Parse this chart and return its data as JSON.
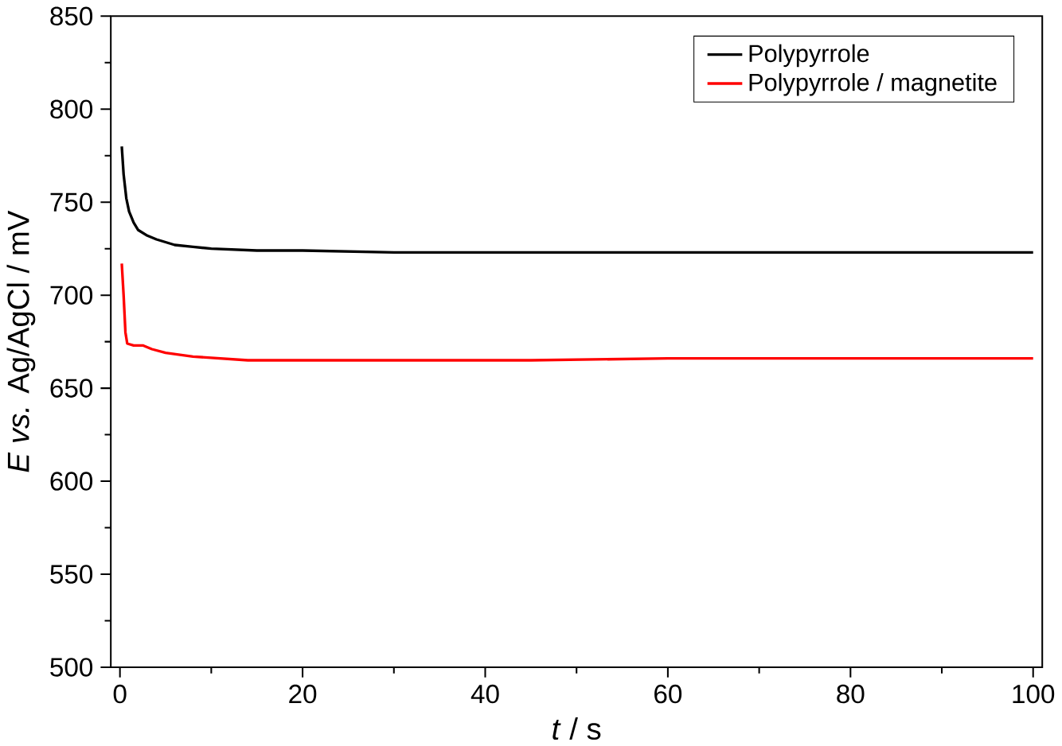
{
  "chart_data": {
    "type": "line",
    "xlabel": "*t* / s",
    "ylabel": "*E* *vs.* Ag/AgCl / mV",
    "xlim": [
      -1,
      101
    ],
    "ylim": [
      500,
      850
    ],
    "xticks": [
      0,
      20,
      40,
      60,
      80,
      100
    ],
    "yticks": [
      500,
      550,
      600,
      650,
      700,
      750,
      800,
      850
    ],
    "legend": "top right",
    "grid": false,
    "marker": "none",
    "line_style": "solid",
    "series": [
      {
        "name": "Polypyrrole",
        "color": "#000000",
        "x": [
          0.2,
          0.4,
          0.7,
          1,
          1.5,
          2,
          3,
          4,
          6,
          8,
          10,
          15,
          20,
          30,
          40,
          60,
          80,
          100
        ],
        "values": [
          780,
          765,
          752,
          745,
          739,
          735,
          732,
          730,
          727,
          726,
          725,
          724,
          724,
          723,
          723,
          723,
          723,
          723
        ]
      },
      {
        "name": "Polypyrrole / magnetite",
        "color": "#ff0000",
        "x": [
          0.2,
          0.4,
          0.6,
          0.8,
          1.5,
          2.5,
          3.5,
          5,
          8,
          11,
          14,
          20,
          30,
          45,
          60,
          80,
          100
        ],
        "values": [
          717,
          700,
          680,
          674,
          673,
          673,
          671,
          669,
          667,
          666,
          665,
          665,
          665,
          665,
          666,
          666,
          666
        ]
      }
    ]
  }
}
